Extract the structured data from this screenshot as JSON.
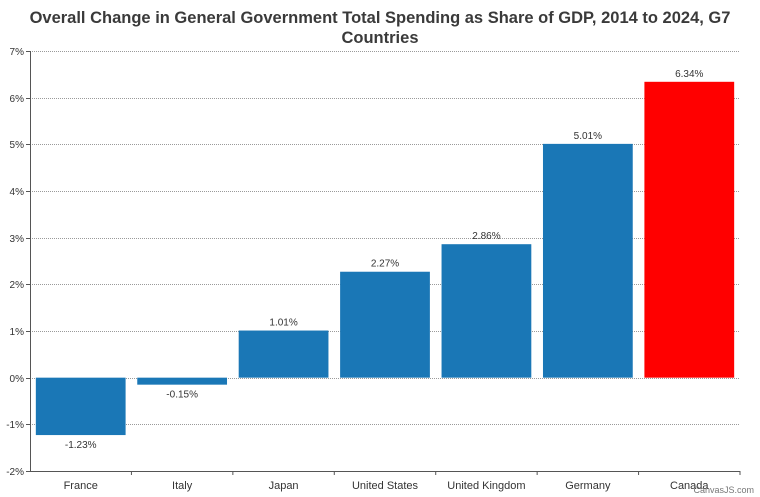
{
  "chart_data": {
    "type": "bar",
    "title_line1": "Overall Change in General Government Total Spending as Share of GDP, 2014 to 2024, G7",
    "title_line2": "Countries",
    "categories": [
      "France",
      "Italy",
      "Japan",
      "United States",
      "United Kingdom",
      "Germany",
      "Canada"
    ],
    "values": [
      -1.23,
      -0.15,
      1.01,
      2.27,
      2.86,
      5.01,
      6.34
    ],
    "data_labels": [
      "-1.23%",
      "-0.15%",
      "1.01%",
      "2.27%",
      "2.86%",
      "5.01%",
      "6.34%"
    ],
    "ylim": [
      -2,
      7
    ],
    "y_ticks": [
      -2,
      -1,
      0,
      1,
      2,
      3,
      4,
      5,
      6,
      7
    ],
    "y_tick_labels": [
      "-2%",
      "-1%",
      "0%",
      "1%",
      "2%",
      "3%",
      "4%",
      "5%",
      "6%",
      "7%"
    ],
    "grid": true,
    "colors": {
      "bar": "#1a77b6",
      "highlight": "#ff0000",
      "highlight_category": "Canada",
      "grid": "#9a9a9a",
      "axis": "#555555"
    }
  },
  "watermark": "CanvasJS.com"
}
